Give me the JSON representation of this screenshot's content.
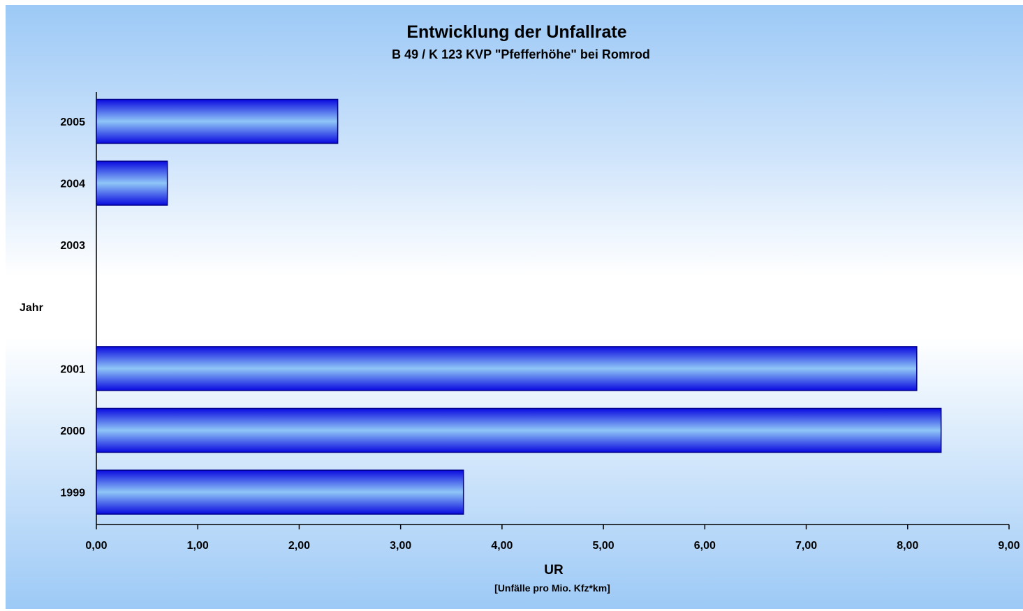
{
  "chart_data": {
    "type": "bar",
    "orientation": "horizontal",
    "title": "Entwicklung der Unfallrate",
    "subtitle": "B 49 / K 123 KVP \"Pfefferhöhe\" bei Romrod",
    "ylabel": "Jahr",
    "xlabel": "UR",
    "xlabel_sub": "[Unfälle pro Mio. Kfz*km]",
    "categories": [
      "2005",
      "2004",
      "2003",
      "",
      "2001",
      "2000",
      "1999"
    ],
    "values": [
      2.38,
      0.7,
      null,
      null,
      8.09,
      8.33,
      3.62
    ],
    "xlim": [
      0,
      9
    ],
    "xticks": [
      "0,00",
      "1,00",
      "2,00",
      "3,00",
      "4,00",
      "5,00",
      "6,00",
      "7,00",
      "8,00",
      "9,00"
    ],
    "grid": false,
    "legend": "none",
    "colors": {
      "bar_edge": "#00008b",
      "bar_dark": "#0a0adf",
      "bar_light": "#8fc6f7"
    }
  }
}
